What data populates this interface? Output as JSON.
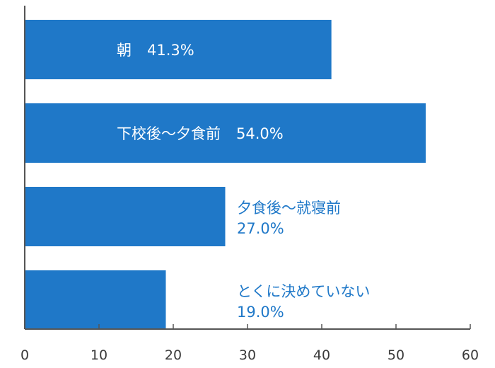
{
  "chart_data": {
    "type": "bar",
    "orientation": "horizontal",
    "categories": [
      "朝",
      "下校後～夕食前",
      "夕食後～就寝前",
      "とくに決めていない"
    ],
    "values": [
      41.3,
      54.0,
      27.0,
      19.0
    ],
    "value_labels": [
      "41.3%",
      "54.0%",
      "27.0%",
      "19.0%"
    ],
    "x_ticks": [
      "0",
      "10",
      "20",
      "30",
      "40",
      "50",
      "60"
    ],
    "xlim": [
      0,
      60
    ],
    "grid": false,
    "colors": {
      "bar": "#1f78c8",
      "inside_label": "#ffffff",
      "outside_label": "#1f78c8",
      "axis": "#555555"
    }
  }
}
